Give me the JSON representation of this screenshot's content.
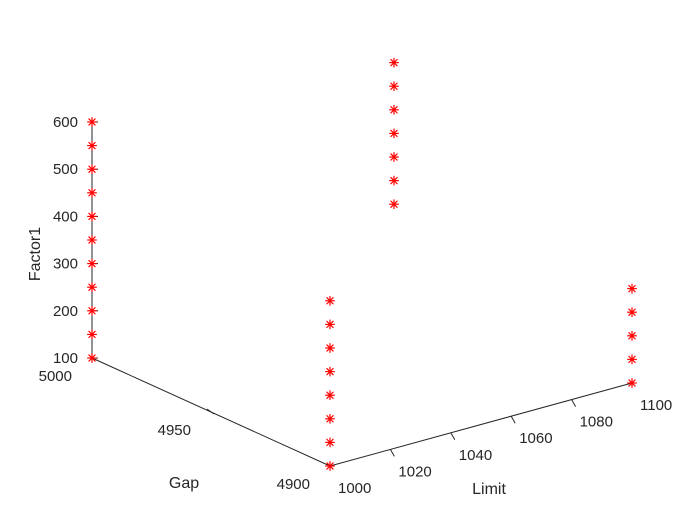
{
  "chart_data": {
    "type": "scatter",
    "title": "",
    "xlabel": "Limit",
    "ylabel": "Gap",
    "zlabel": "Factor1",
    "xlim": [
      1000,
      1100
    ],
    "ylim": [
      4900,
      5000
    ],
    "zlim": [
      100,
      600
    ],
    "xticks": [
      "1000",
      "1020",
      "1040",
      "1060",
      "1080",
      "1100"
    ],
    "yticks": [
      "4900",
      "4950",
      "5000"
    ],
    "zticks": [
      "100",
      "200",
      "300",
      "400",
      "500",
      "600"
    ],
    "marker": "*",
    "marker_color": "#ff0000",
    "grid": false,
    "points": [
      {
        "x": 1000,
        "y": 5000,
        "z": 100
      },
      {
        "x": 1000,
        "y": 5000,
        "z": 150
      },
      {
        "x": 1000,
        "y": 5000,
        "z": 200
      },
      {
        "x": 1000,
        "y": 5000,
        "z": 250
      },
      {
        "x": 1000,
        "y": 5000,
        "z": 300
      },
      {
        "x": 1000,
        "y": 5000,
        "z": 350
      },
      {
        "x": 1000,
        "y": 5000,
        "z": 400
      },
      {
        "x": 1000,
        "y": 5000,
        "z": 450
      },
      {
        "x": 1000,
        "y": 5000,
        "z": 500
      },
      {
        "x": 1000,
        "y": 5000,
        "z": 550
      },
      {
        "x": 1000,
        "y": 5000,
        "z": 600
      },
      {
        "x": 1000,
        "y": 4900,
        "z": 100
      },
      {
        "x": 1000,
        "y": 4900,
        "z": 150
      },
      {
        "x": 1000,
        "y": 4900,
        "z": 200
      },
      {
        "x": 1000,
        "y": 4900,
        "z": 250
      },
      {
        "x": 1000,
        "y": 4900,
        "z": 300
      },
      {
        "x": 1000,
        "y": 4900,
        "z": 350
      },
      {
        "x": 1000,
        "y": 4900,
        "z": 400
      },
      {
        "x": 1000,
        "y": 4900,
        "z": 450
      },
      {
        "x": 1100,
        "y": 4900,
        "z": 100
      },
      {
        "x": 1100,
        "y": 4900,
        "z": 150
      },
      {
        "x": 1100,
        "y": 4900,
        "z": 200
      },
      {
        "x": 1100,
        "y": 4900,
        "z": 250
      },
      {
        "x": 1100,
        "y": 4900,
        "z": 300
      },
      {
        "x": 1100,
        "y": 5000,
        "z": 250
      },
      {
        "x": 1100,
        "y": 5000,
        "z": 300
      },
      {
        "x": 1100,
        "y": 5000,
        "z": 350
      },
      {
        "x": 1100,
        "y": 5000,
        "z": 400
      },
      {
        "x": 1100,
        "y": 5000,
        "z": 450
      },
      {
        "x": 1100,
        "y": 5000,
        "z": 500
      },
      {
        "x": 1100,
        "y": 5000,
        "z": 550
      }
    ]
  }
}
